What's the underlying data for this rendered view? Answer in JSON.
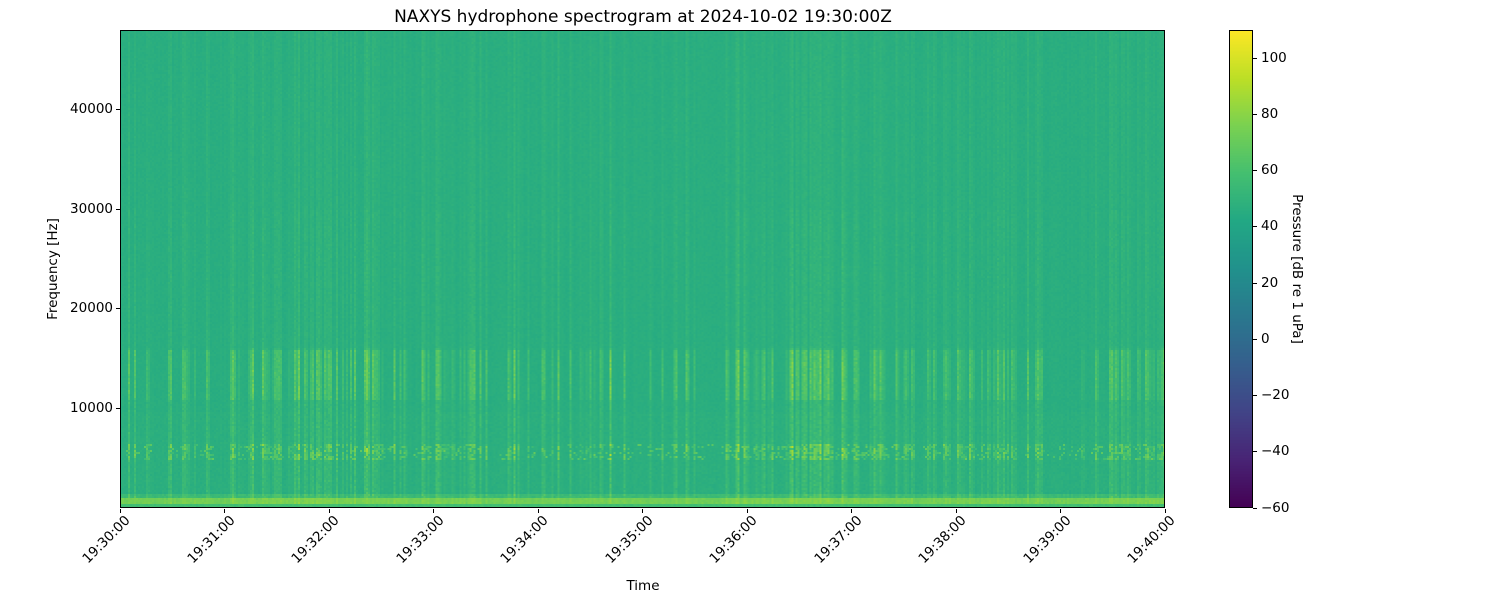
{
  "figure": {
    "background": "#ffffff",
    "frame_color": "#000000"
  },
  "chart_data": {
    "type": "heatmap",
    "subtype": "spectrogram",
    "title": "NAXYS hydrophone spectrogram at 2024-10-02 19:30:00Z",
    "xlabel": "Time",
    "ylabel": "Frequency [Hz]",
    "grid": false,
    "x_ticks": [
      "19:30:00",
      "19:31:00",
      "19:32:00",
      "19:33:00",
      "19:34:00",
      "19:35:00",
      "19:36:00",
      "19:37:00",
      "19:38:00",
      "19:39:00",
      "19:40:00"
    ],
    "x_tick_rotation_deg": 45,
    "y_axis": {
      "min_hz": 0,
      "max_hz": 48000,
      "ticks": [
        {
          "value": 10000,
          "label": "10000"
        },
        {
          "value": 20000,
          "label": "20000"
        },
        {
          "value": 30000,
          "label": "30000"
        },
        {
          "value": 40000,
          "label": "40000"
        }
      ]
    },
    "colorbar": {
      "label": "Pressure [dB re 1 uPa]",
      "min": -60,
      "max": 110,
      "ticks": [
        {
          "value": 100,
          "label": "100"
        },
        {
          "value": 80,
          "label": "80"
        },
        {
          "value": 60,
          "label": "60"
        },
        {
          "value": 40,
          "label": "40"
        },
        {
          "value": 20,
          "label": "20"
        },
        {
          "value": 0,
          "label": "0"
        },
        {
          "value": -20,
          "label": "−20"
        },
        {
          "value": -40,
          "label": "−40"
        },
        {
          "value": -60,
          "label": "−60"
        }
      ],
      "colormap": "viridis",
      "stops": [
        "#440154",
        "#482475",
        "#414487",
        "#355f8d",
        "#2a788e",
        "#21918c",
        "#22a884",
        "#44bf70",
        "#7ad151",
        "#bddf26",
        "#fde725"
      ]
    },
    "content": {
      "description": "Mostly uniform ambient field near 46 dB (teal-green) with vertical broadband transient striations, an impulsive speckle band at 4.7-6.4 kHz, enhanced transient energy at 10.8-15.8 kHz, and a bright continuous low-frequency band below 1 kHz.",
      "background_db": 46,
      "pixel_noise_db": 2.4,
      "bands": [
        {
          "name": "low-frequency-bright-band",
          "freq_hz": [
            300,
            950
          ],
          "level_db": 70
        },
        {
          "name": "sub-band",
          "freq_hz": [
            0,
            280
          ],
          "level_db": 56
        },
        {
          "name": "low-edge-boost",
          "freq_hz": [
            950,
            1400
          ],
          "boost_db": 8
        },
        {
          "name": "impulsive-speckle-band",
          "freq_hz": [
            4700,
            6400
          ],
          "peak_db": 88
        },
        {
          "name": "transient-mid-band",
          "freq_hz": [
            10800,
            15800
          ],
          "boost_db": 10
        },
        {
          "name": "mottle-band",
          "freq_hz": [
            1500,
            9500
          ],
          "boost_db": 1.6
        }
      ],
      "striation_attenuation": [
        {
          "above_hz": 16000,
          "factor": 0.55
        },
        {
          "above_hz": 30000,
          "factor": 0.38
        }
      ],
      "base_event_density": 0.1,
      "event_clusters": [
        {
          "start": 0.0,
          "end": 0.03,
          "density": 0.3
        },
        {
          "start": 0.045,
          "end": 0.09,
          "density": 0.55
        },
        {
          "start": 0.105,
          "end": 0.275,
          "density": 0.85
        },
        {
          "start": 0.28,
          "end": 0.345,
          "density": 0.6
        },
        {
          "start": 0.36,
          "end": 0.42,
          "density": 0.3
        },
        {
          "start": 0.43,
          "end": 0.56,
          "density": 0.5
        },
        {
          "start": 0.575,
          "end": 0.76,
          "density": 0.88
        },
        {
          "start": 0.77,
          "end": 0.855,
          "density": 0.6
        },
        {
          "start": 0.86,
          "end": 0.9,
          "density": 0.35
        },
        {
          "start": 0.9,
          "end": 0.935,
          "density": 0.55
        },
        {
          "start": 0.94,
          "end": 1.0,
          "density": 0.85
        }
      ]
    }
  }
}
